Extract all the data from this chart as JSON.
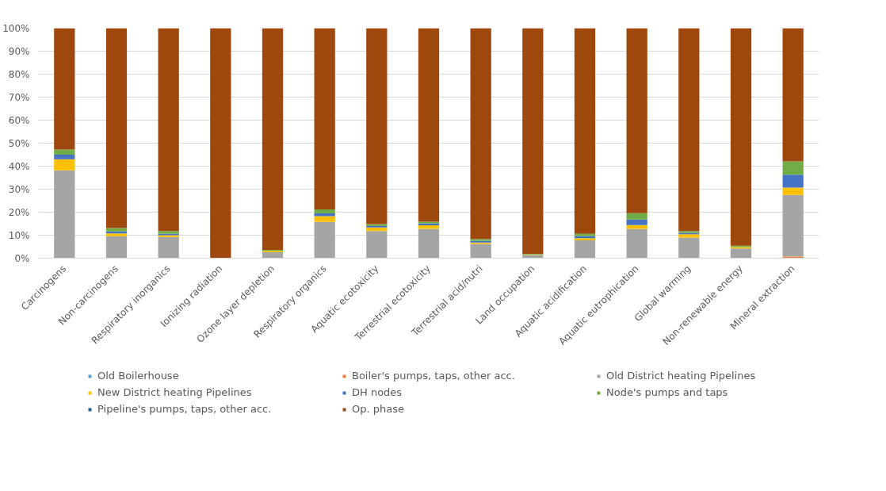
{
  "chart_data": {
    "type": "bar",
    "stacked": true,
    "categories": [
      "Carcinogens",
      "Non-carcinogens",
      "Respiratory inorganics",
      "Ionizing radiation",
      "Ozone layer depletion",
      "Respiratory organics",
      "Aquatic ecotoxicity",
      "Terrestrial ecotoxicity",
      "Terrestrial acid/nutri",
      "Land occupation",
      "Aquatic acidification",
      "Aquatic eutrophication",
      "Global warming",
      "Non-renewable energy",
      "Mineral extraction"
    ],
    "series": [
      {
        "name": "Old Boilerhouse",
        "color": "#5b9bd5",
        "values": [
          0,
          0,
          0,
          0,
          0,
          0,
          0,
          0,
          0,
          0,
          0,
          0,
          0,
          0,
          0
        ]
      },
      {
        "name": "Boiler's pumps, taps, other acc.",
        "color": "#ed7d31",
        "values": [
          null,
          0,
          0,
          0,
          0,
          0,
          0,
          0,
          0,
          0,
          0,
          0,
          0,
          0,
          0.7
        ]
      },
      {
        "name": "Old District heating Pipelines",
        "color": "#a5a5a5",
        "values": [
          38.2,
          9.6,
          9.2,
          null,
          2.6,
          15.8,
          11.8,
          12.8,
          6.2,
          1.2,
          7.8,
          12.8,
          9.0,
          4.2,
          26.8
        ]
      },
      {
        "name": "New District heating Pipelines",
        "color": "#ffc000",
        "values": [
          4.8,
          1.2,
          0.8,
          0,
          0.6,
          2.5,
          1.6,
          1.5,
          0.6,
          0.3,
          0.9,
          1.6,
          1.4,
          0.6,
          3.2
        ]
      },
      {
        "name": "DH nodes",
        "color": "#4472c4",
        "values": [
          2.0,
          0.8,
          0.6,
          0,
          null,
          1.2,
          0.6,
          0.8,
          0.8,
          0.1,
          0.9,
          2.4,
          0.6,
          0,
          5.6
        ]
      },
      {
        "name": "Node's pumps and taps",
        "color": "#70ad47",
        "values": [
          2.2,
          1.5,
          1.2,
          0,
          0.4,
          1.7,
          0.8,
          0.8,
          0.8,
          0.3,
          1.0,
          2.8,
          0.8,
          0.6,
          5.8
        ]
      },
      {
        "name": "Pipeline's pumps, taps, other acc.",
        "color": "#255e91",
        "values": [
          0,
          0,
          0,
          0,
          0,
          0,
          0,
          0,
          0,
          0,
          0,
          0,
          0,
          0,
          0
        ]
      },
      {
        "name": "Op. phase",
        "color": "#9e480e",
        "values": [
          52.8,
          86.9,
          88.2,
          100,
          96.4,
          78.8,
          85.2,
          84.1,
          91.6,
          98.1,
          89.4,
          80.4,
          88.2,
          94.6,
          57.9
        ]
      }
    ],
    "ylim": [
      0,
      100
    ],
    "yticks": [
      {
        "value": 0,
        "label": "0%"
      },
      {
        "value": 10,
        "label": "10%"
      },
      {
        "value": 20,
        "label": "20%"
      },
      {
        "value": 30,
        "label": "30%"
      },
      {
        "value": 40,
        "label": "40%"
      },
      {
        "value": 50,
        "label": "50%"
      },
      {
        "value": 60,
        "label": "60%"
      },
      {
        "value": 70,
        "label": "70%"
      },
      {
        "value": 80,
        "label": "80%"
      },
      {
        "value": 90,
        "label": "90%"
      },
      {
        "value": 100,
        "label": "100%"
      }
    ],
    "grid": "y",
    "legend": "bottom"
  }
}
